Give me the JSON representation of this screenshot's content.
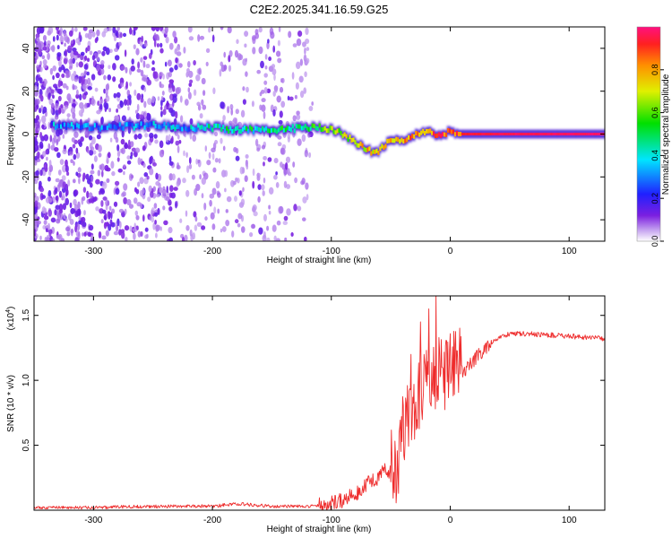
{
  "figure": {
    "title": "C2E2.2025.341.16.59.G25"
  },
  "chart_data": [
    {
      "type": "heatmap",
      "title": "C2E2.2025.341.16.59.G25",
      "xlabel": "Height of straight line (km)",
      "ylabel": "Frequency (Hz)",
      "xlim": [
        -350,
        130
      ],
      "ylim": [
        -50,
        50
      ],
      "xticks": [
        -300,
        -200,
        -100,
        0,
        100
      ],
      "xtick_labels": [
        "-300",
        "-200",
        "-100",
        "0",
        "100"
      ],
      "yticks": [
        -40,
        -20,
        0,
        20,
        40
      ],
      "ytick_labels": [
        "-40",
        "-20",
        "0",
        "20",
        "40"
      ],
      "colorbar": {
        "label": "Normalized spectral amplitude",
        "range": [
          0,
          1
        ],
        "ticks": [
          0.0,
          0.2,
          0.4,
          0.6,
          0.8
        ],
        "tick_labels": [
          "0.0",
          "0.2",
          "0.4",
          "0.6",
          "0.8"
        ]
      },
      "ridge": {
        "x": [
          -330,
          -300,
          -250,
          -220,
          -200,
          -180,
          -150,
          -120,
          -110,
          -100,
          -90,
          -80,
          -70,
          -65,
          -60,
          -55,
          -50,
          -40,
          -30,
          -20,
          -10,
          0,
          10,
          20,
          60,
          130
        ],
        "frequency": [
          4,
          3,
          4,
          3,
          3,
          2,
          2,
          3,
          3,
          2,
          0,
          -4,
          -7,
          -9,
          -8,
          -5,
          -3,
          -3,
          0,
          1,
          0,
          1,
          0,
          0,
          0,
          0
        ],
        "amplitude": [
          0.3,
          0.25,
          0.3,
          0.35,
          0.4,
          0.45,
          0.45,
          0.5,
          0.55,
          0.6,
          0.65,
          0.7,
          0.75,
          0.72,
          0.7,
          0.72,
          0.75,
          0.8,
          0.82,
          0.85,
          0.88,
          0.9,
          0.93,
          0.95,
          0.97,
          0.98
        ]
      },
      "noise_extent_km": [
        -350,
        -115
      ]
    },
    {
      "type": "line",
      "xlabel": "Height of straight line (km)",
      "ylabel": "SNR (10 * v/v)",
      "scale_label": "(x10",
      "scale_exponent": "4",
      "scale_close": ")",
      "xlim": [
        -350,
        130
      ],
      "ylim": [
        0,
        1.65
      ],
      "xticks": [
        -300,
        -200,
        -100,
        0,
        100
      ],
      "xtick_labels": [
        "-300",
        "-200",
        "-100",
        "0",
        "100"
      ],
      "yticks": [
        0.5,
        1.0,
        1.5
      ],
      "ytick_labels": [
        "0.5",
        "1.0",
        "1.5"
      ],
      "color": "#ee2c2c",
      "series": [
        {
          "name": "SNR",
          "x": [
            -350,
            -300,
            -250,
            -200,
            -180,
            -150,
            -120,
            -100,
            -90,
            -80,
            -70,
            -60,
            -55,
            -50,
            -45,
            -42,
            -40,
            -35,
            -30,
            -25,
            -20,
            -15,
            -10,
            -5,
            0,
            10,
            20,
            30,
            40,
            50,
            60,
            80,
            100,
            130
          ],
          "y": [
            0.02,
            0.02,
            0.03,
            0.03,
            0.05,
            0.03,
            0.03,
            0.05,
            0.08,
            0.12,
            0.2,
            0.25,
            0.32,
            0.3,
            0.15,
            0.35,
            0.5,
            0.6,
            0.7,
            0.8,
            0.85,
            0.9,
            0.95,
            0.92,
            1.0,
            1.05,
            1.15,
            1.25,
            1.33,
            1.36,
            1.36,
            1.35,
            1.34,
            1.32
          ]
        }
      ],
      "spikes": [
        {
          "x": -33,
          "y": 1.2
        },
        {
          "x": -25,
          "y": 1.45
        },
        {
          "x": -22,
          "y": 1.2
        },
        {
          "x": -18,
          "y": 1.55
        },
        {
          "x": -12,
          "y": 1.65
        },
        {
          "x": -8,
          "y": 1.05
        }
      ]
    }
  ]
}
